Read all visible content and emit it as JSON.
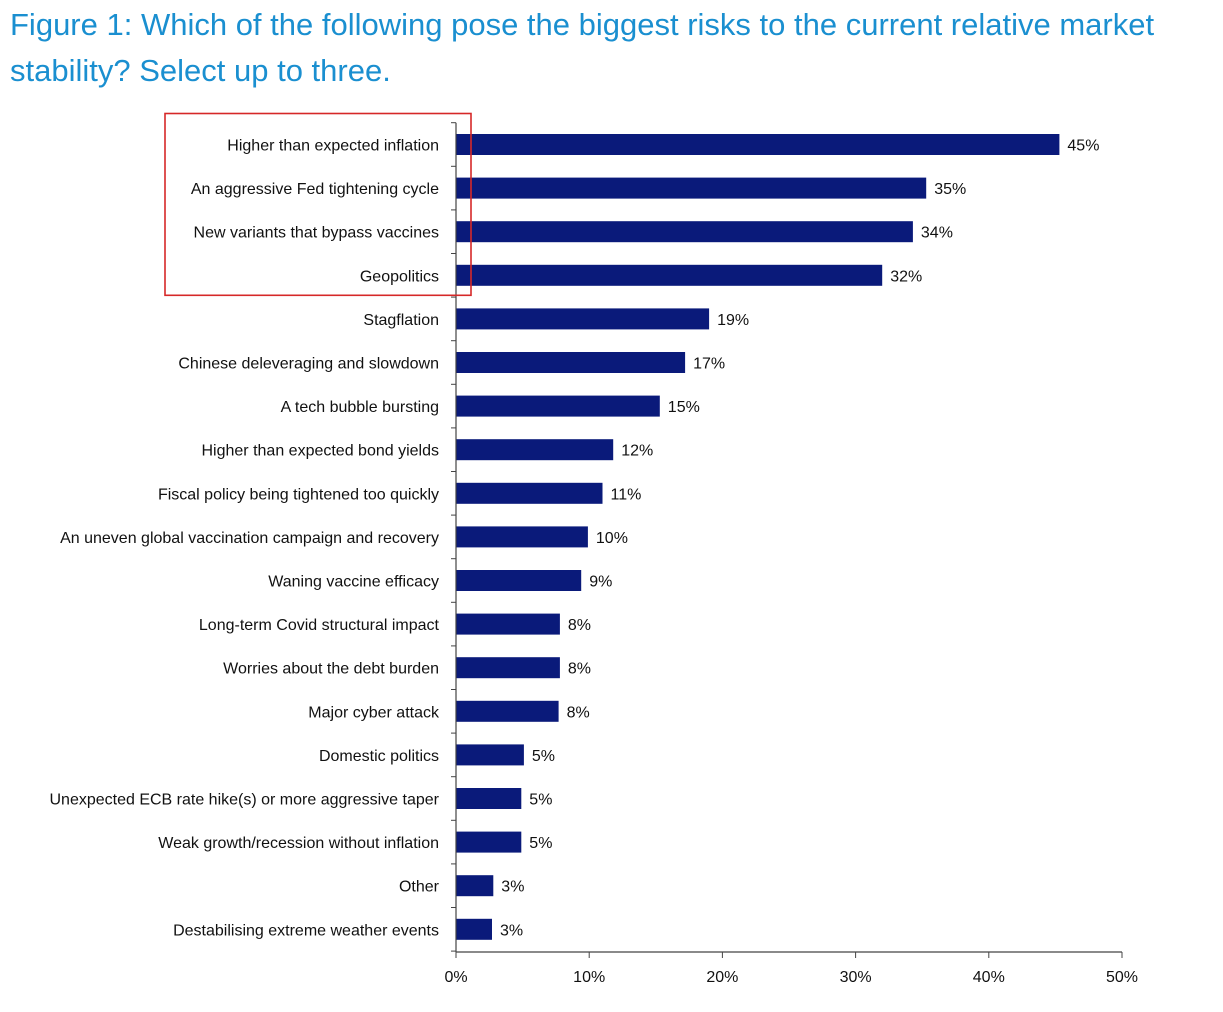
{
  "title": "Figure 1: Which of the following pose the biggest risks to the current relative market stability? Select up to three.",
  "colors": {
    "title": "#1a8fd0",
    "bar": "#0a1a7a",
    "highlight_box": "#d62828",
    "axis": "#444444"
  },
  "chart_data": {
    "type": "bar",
    "orientation": "horizontal",
    "title": "Figure 1: Which of the following pose the biggest risks to the current relative market stability? Select up to three.",
    "categories": [
      "Higher than expected inflation",
      "An aggressive Fed tightening cycle",
      "New variants that bypass vaccines",
      "Geopolitics",
      "Stagflation",
      "Chinese deleveraging and slowdown",
      "A tech bubble bursting",
      "Higher than expected bond yields",
      "Fiscal policy being tightened too quickly",
      "An uneven global vaccination campaign and recovery",
      "Waning vaccine efficacy",
      "Long-term Covid structural impact",
      "Worries about the debt burden",
      "Major cyber attack",
      "Domestic politics",
      "Unexpected ECB rate hike(s) or more aggressive taper",
      "Weak growth/recession without inflation",
      "Other",
      "Destabilising extreme weather events"
    ],
    "values": [
      45.3,
      35.3,
      34.3,
      32.0,
      19.0,
      17.2,
      15.3,
      11.8,
      11.0,
      9.9,
      9.4,
      7.8,
      7.8,
      7.7,
      5.1,
      4.9,
      4.9,
      2.8,
      2.7
    ],
    "value_labels": [
      "45%",
      "35%",
      "34%",
      "32%",
      "19%",
      "17%",
      "15%",
      "12%",
      "11%",
      "10%",
      "9%",
      "8%",
      "8%",
      "8%",
      "5%",
      "5%",
      "5%",
      "3%",
      "3%"
    ],
    "xlim": [
      0,
      50
    ],
    "x_ticks": [
      0,
      10,
      20,
      30,
      40,
      50
    ],
    "x_tick_labels": [
      "0%",
      "10%",
      "20%",
      "30%",
      "40%",
      "50%"
    ],
    "xlabel": "",
    "ylabel": "",
    "grid": false,
    "legend": "none",
    "highlighted_categories": [
      0,
      1,
      2,
      3
    ]
  }
}
